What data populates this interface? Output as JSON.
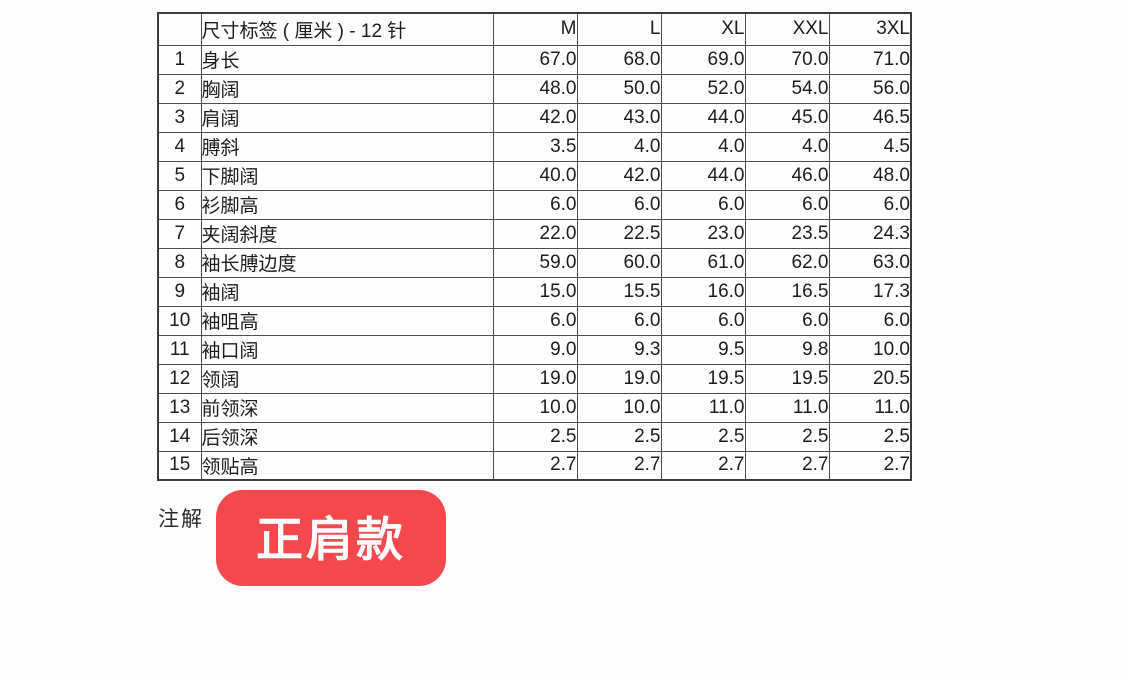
{
  "table": {
    "header": {
      "corner": "",
      "label": "尺寸标签 ( 厘米 ) - 12 针",
      "sizes": [
        "M",
        "L",
        "XL",
        "XXL",
        "3XL"
      ]
    },
    "rows": [
      {
        "num": "1",
        "label": "身长",
        "values": [
          "67.0",
          "68.0",
          "69.0",
          "70.0",
          "71.0"
        ]
      },
      {
        "num": "2",
        "label": "胸阔",
        "values": [
          "48.0",
          "50.0",
          "52.0",
          "54.0",
          "56.0"
        ]
      },
      {
        "num": "3",
        "label": "肩阔",
        "values": [
          "42.0",
          "43.0",
          "44.0",
          "45.0",
          "46.5"
        ]
      },
      {
        "num": "4",
        "label": "膊斜",
        "values": [
          "3.5",
          "4.0",
          "4.0",
          "4.0",
          "4.5"
        ]
      },
      {
        "num": "5",
        "label": "下脚阔",
        "values": [
          "40.0",
          "42.0",
          "44.0",
          "46.0",
          "48.0"
        ]
      },
      {
        "num": "6",
        "label": "衫脚高",
        "values": [
          "6.0",
          "6.0",
          "6.0",
          "6.0",
          "6.0"
        ]
      },
      {
        "num": "7",
        "label": "夹阔斜度",
        "values": [
          "22.0",
          "22.5",
          "23.0",
          "23.5",
          "24.3"
        ]
      },
      {
        "num": "8",
        "label": "袖长膊边度",
        "values": [
          "59.0",
          "60.0",
          "61.0",
          "62.0",
          "63.0"
        ]
      },
      {
        "num": "9",
        "label": "袖阔",
        "values": [
          "15.0",
          "15.5",
          "16.0",
          "16.5",
          "17.3"
        ]
      },
      {
        "num": "10",
        "label": "袖咀高",
        "values": [
          "6.0",
          "6.0",
          "6.0",
          "6.0",
          "6.0"
        ]
      },
      {
        "num": "11",
        "label": "袖口阔",
        "values": [
          "9.0",
          "9.3",
          "9.5",
          "9.8",
          "10.0"
        ]
      },
      {
        "num": "12",
        "label": "领阔",
        "values": [
          "19.0",
          "19.0",
          "19.5",
          "19.5",
          "20.5"
        ]
      },
      {
        "num": "13",
        "label": "前领深",
        "values": [
          "10.0",
          "10.0",
          "11.0",
          "11.0",
          "11.0"
        ]
      },
      {
        "num": "14",
        "label": "后领深",
        "values": [
          "2.5",
          "2.5",
          "2.5",
          "2.5",
          "2.5"
        ]
      },
      {
        "num": "15",
        "label": "领贴高",
        "values": [
          "2.7",
          "2.7",
          "2.7",
          "2.7",
          "2.7"
        ]
      }
    ]
  },
  "note": {
    "label": "注解",
    "badge_text": "正肩款",
    "badge_color": "#f4484e",
    "badge_text_color": "#ffffff"
  }
}
